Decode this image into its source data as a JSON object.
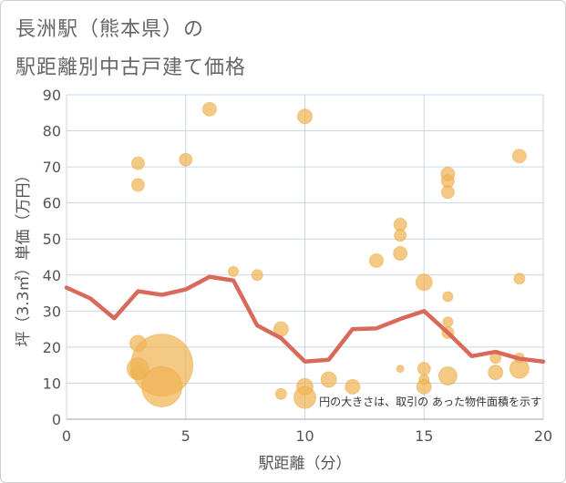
{
  "header": {
    "title_line1": "長洲駅（熊本県）の",
    "title_line2": "駅距離別中古戸建て価格"
  },
  "chart_data": {
    "type": "scatter",
    "title": "長洲駅（熊本県）の駅距離別中古戸建て価格",
    "xlabel": "駅距離（分）",
    "ylabel": "坪（3.3㎡）単価（万円）",
    "xlim": [
      0,
      20
    ],
    "ylim": [
      0,
      90
    ],
    "xticks": [
      0,
      5,
      10,
      15,
      20
    ],
    "yticks": [
      0,
      10,
      20,
      30,
      40,
      50,
      60,
      70,
      80,
      90
    ],
    "grid": true,
    "annotation": "円の大きさは、取引の あった物件面積を示す",
    "colors": {
      "bubble": "#f0b454",
      "line": "#d9695a",
      "grid": "#c8d6e6",
      "axis_text": "#555555"
    },
    "series": [
      {
        "kind": "bubble",
        "points": [
          {
            "x": 3,
            "y": 71,
            "size": 7
          },
          {
            "x": 3,
            "y": 65,
            "size": 7
          },
          {
            "x": 3,
            "y": 21,
            "size": 9
          },
          {
            "x": 3,
            "y": 14,
            "size": 12
          },
          {
            "x": 3,
            "y": 13,
            "size": 8
          },
          {
            "x": 4,
            "y": 15,
            "size": 34
          },
          {
            "x": 4,
            "y": 9,
            "size": 22
          },
          {
            "x": 5,
            "y": 72,
            "size": 7
          },
          {
            "x": 6,
            "y": 86,
            "size": 7.5
          },
          {
            "x": 7,
            "y": 41,
            "size": 5.5
          },
          {
            "x": 8,
            "y": 40,
            "size": 6
          },
          {
            "x": 9,
            "y": 25,
            "size": 8
          },
          {
            "x": 9,
            "y": 7,
            "size": 6
          },
          {
            "x": 10,
            "y": 84,
            "size": 8
          },
          {
            "x": 10,
            "y": 9,
            "size": 9
          },
          {
            "x": 10,
            "y": 6,
            "size": 12
          },
          {
            "x": 11,
            "y": 11,
            "size": 8.5
          },
          {
            "x": 12,
            "y": 9,
            "size": 8
          },
          {
            "x": 13,
            "y": 44,
            "size": 7.5
          },
          {
            "x": 14,
            "y": 54,
            "size": 7
          },
          {
            "x": 14,
            "y": 51,
            "size": 6.5
          },
          {
            "x": 14,
            "y": 46,
            "size": 7.5
          },
          {
            "x": 14,
            "y": 14,
            "size": 4
          },
          {
            "x": 15,
            "y": 38,
            "size": 9
          },
          {
            "x": 15,
            "y": 14,
            "size": 7
          },
          {
            "x": 15,
            "y": 11,
            "size": 5.5
          },
          {
            "x": 15,
            "y": 9,
            "size": 8
          },
          {
            "x": 16,
            "y": 68,
            "size": 7.5
          },
          {
            "x": 16,
            "y": 66,
            "size": 7
          },
          {
            "x": 16,
            "y": 63,
            "size": 7
          },
          {
            "x": 16,
            "y": 34,
            "size": 5.5
          },
          {
            "x": 16,
            "y": 27,
            "size": 5.5
          },
          {
            "x": 16,
            "y": 24,
            "size": 6.5
          },
          {
            "x": 16,
            "y": 12,
            "size": 10
          },
          {
            "x": 18,
            "y": 17,
            "size": 6
          },
          {
            "x": 18,
            "y": 13,
            "size": 8
          },
          {
            "x": 19,
            "y": 73,
            "size": 7.5
          },
          {
            "x": 19,
            "y": 39,
            "size": 6
          },
          {
            "x": 19,
            "y": 17,
            "size": 5.5
          },
          {
            "x": 19,
            "y": 14,
            "size": 10.5
          }
        ]
      },
      {
        "kind": "line",
        "x": [
          0,
          1,
          2,
          3,
          4,
          5,
          6,
          7,
          8,
          9,
          10,
          11,
          12,
          13,
          14,
          15,
          16,
          17,
          18,
          19,
          20
        ],
        "y": [
          36.5,
          33.5,
          28,
          35.5,
          34.5,
          36,
          39.5,
          38.5,
          26,
          22.5,
          16,
          16.5,
          25,
          25.2,
          27.8,
          30,
          24,
          17.5,
          18.7,
          16.8,
          16
        ]
      }
    ]
  }
}
